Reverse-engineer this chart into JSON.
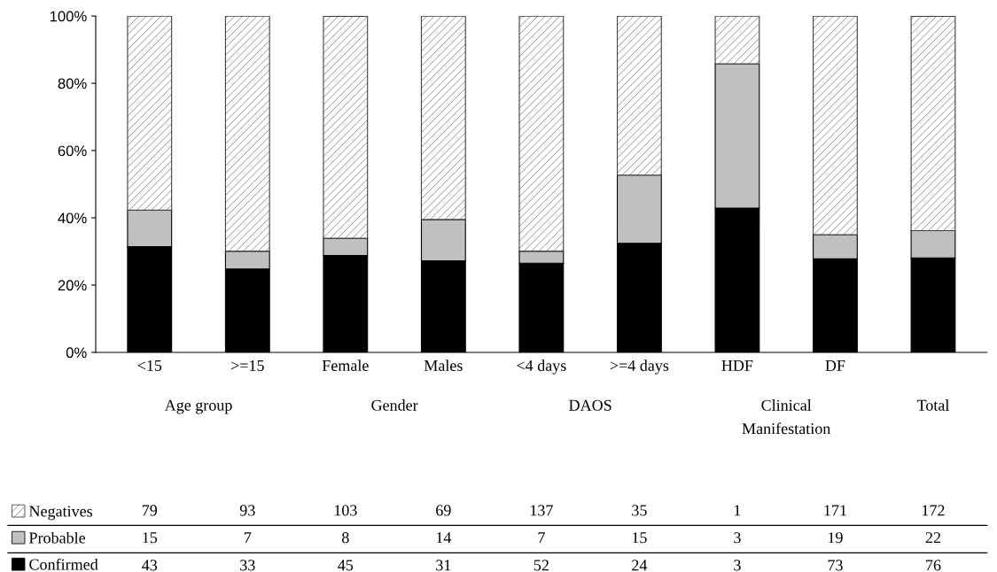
{
  "chart_data": {
    "type": "bar",
    "stacked": true,
    "categories": [
      "<15",
      ">=15",
      "Female",
      "Males",
      "<4 days",
      ">=4 days",
      "HDF",
      "DF",
      null
    ],
    "series": [
      {
        "name": "Confirmed",
        "color": "#000000",
        "values": [
          31.4,
          24.8,
          28.8,
          27.2,
          26.5,
          32.4,
          42.9,
          27.8,
          28.1
        ]
      },
      {
        "name": "Probable",
        "color": "#c0c0c0",
        "values": [
          10.9,
          5.3,
          5.1,
          12.3,
          3.6,
          20.3,
          42.9,
          7.2,
          8.1
        ]
      },
      {
        "name": "Negatives",
        "color": "#404040",
        "values": [
          57.7,
          69.9,
          66.0,
          60.5,
          69.9,
          47.3,
          14.2,
          65.0,
          63.7
        ]
      }
    ],
    "ylim": [
      0,
      100
    ],
    "yticks": [
      {
        "value": 0,
        "label": "0%"
      },
      {
        "value": 20,
        "label": "20%"
      },
      {
        "value": 40,
        "label": "40%"
      },
      {
        "value": 60,
        "label": "60%"
      },
      {
        "value": 80,
        "label": "80%"
      },
      {
        "value": 100,
        "label": "100%"
      }
    ],
    "annotations": [
      "Age group",
      "Gender",
      "DAOS",
      "Clinical\nManifestation",
      "Total",
      "79",
      "93",
      "103",
      "69",
      "137",
      "35",
      "1",
      "171",
      "172",
      "15",
      "7",
      "8",
      "14",
      "7",
      "15",
      "3",
      "19",
      "22",
      "43",
      "33",
      "45",
      "31",
      "52",
      "24",
      "3",
      "73",
      "76"
    ],
    "legend": "bottom",
    "grid": false
  }
}
